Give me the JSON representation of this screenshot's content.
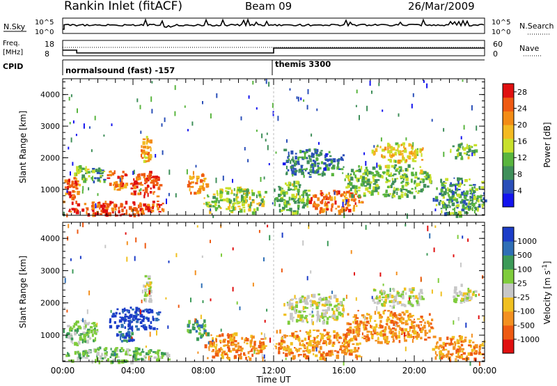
{
  "header": {
    "title": "Rankin Inlet (fitACF)",
    "beam": "Beam 09",
    "date": "26/Mar/2009"
  },
  "params": {
    "nsky_label": "N.Sky",
    "nsky_ticks": [
      "10^5",
      "10^0"
    ],
    "nsearch_label": "N.Search",
    "nsearch_ticks": [
      "10^5",
      "10^0"
    ],
    "freq_label": "Freq.",
    "freq_unit": "[MHz]",
    "freq_ticks": [
      "18",
      "8"
    ],
    "nave_label": "Nave",
    "nave_ticks": [
      "60",
      "0"
    ],
    "cpid_label": "CPID",
    "cpid_segments": [
      {
        "start_hr": 0,
        "label": "normalsound (fast) -157"
      },
      {
        "start_hr": 12,
        "label": "themis 3300"
      }
    ]
  },
  "colors": {
    "power": [
      "#1414ee",
      "#2a4fb8",
      "#3f8f5a",
      "#59b53e",
      "#c8e02c",
      "#f3ba22",
      "#f38c16",
      "#ef5a12",
      "#e01010"
    ],
    "velocity": [
      "#1c3dc8",
      "#2f6fb6",
      "#3c9a58",
      "#7fcc3c",
      "#c7c7c7",
      "#f0c020",
      "#f39020",
      "#ee5a12",
      "#e01010"
    ]
  },
  "chart_data": [
    {
      "type": "heatmap",
      "title": "Power",
      "ylabel": "Slant Range [km]",
      "xlabel": "Time UT",
      "xlim": [
        0,
        24
      ],
      "ylim": [
        180,
        4500
      ],
      "x_ticks": [
        "00:00",
        "04:00",
        "08:00",
        "12:00",
        "16:00",
        "20:00",
        "00:00"
      ],
      "y_ticks": [
        1000,
        2000,
        3000,
        4000
      ],
      "colorbar": {
        "label": "Power [dB]",
        "range": [
          0,
          30
        ],
        "ticks": [
          4,
          8,
          12,
          16,
          20,
          24,
          28
        ]
      },
      "clusters": [
        {
          "t0": 0.0,
          "t1": 1.0,
          "r0": 750,
          "r1": 1400,
          "value": 24
        },
        {
          "t0": 0.0,
          "t1": 6.0,
          "r0": 200,
          "r1": 650,
          "value": 26
        },
        {
          "t0": 0.6,
          "t1": 1.5,
          "r0": 1300,
          "r1": 1800,
          "value": 14
        },
        {
          "t0": 1.5,
          "t1": 2.4,
          "r0": 1200,
          "r1": 1700,
          "value": 10
        },
        {
          "t0": 2.5,
          "t1": 3.6,
          "r0": 1000,
          "r1": 1700,
          "value": 24
        },
        {
          "t0": 3.8,
          "t1": 5.6,
          "r0": 800,
          "r1": 1600,
          "value": 26
        },
        {
          "t0": 4.4,
          "t1": 5.0,
          "r0": 1900,
          "r1": 2700,
          "value": 20
        },
        {
          "t0": 7.0,
          "t1": 8.2,
          "r0": 900,
          "r1": 1600,
          "value": 22
        },
        {
          "t0": 8.0,
          "t1": 11.5,
          "r0": 300,
          "r1": 1100,
          "value": 14
        },
        {
          "t0": 12.0,
          "t1": 14.0,
          "r0": 300,
          "r1": 1300,
          "value": 12
        },
        {
          "t0": 14.0,
          "t1": 17.0,
          "r0": 300,
          "r1": 1000,
          "value": 24
        },
        {
          "t0": 17.5,
          "t1": 20.5,
          "r0": 1900,
          "r1": 2500,
          "value": 18
        },
        {
          "t0": 16.0,
          "t1": 21.0,
          "r0": 800,
          "r1": 1800,
          "value": 12
        },
        {
          "t0": 12.5,
          "t1": 16.0,
          "r0": 1400,
          "r1": 2300,
          "value": 8
        },
        {
          "t0": 21.0,
          "t1": 24.0,
          "r0": 200,
          "r1": 1400,
          "value": 10
        },
        {
          "t0": 22.0,
          "t1": 23.5,
          "r0": 2000,
          "r1": 2500,
          "value": 12
        }
      ]
    },
    {
      "type": "heatmap",
      "title": "Velocity",
      "ylabel": "Slant Range [km]",
      "xlabel": "Time UT",
      "xlim": [
        0,
        24
      ],
      "ylim": [
        180,
        4500
      ],
      "x_ticks": [
        "00:00",
        "04:00",
        "08:00",
        "12:00",
        "16:00",
        "20:00",
        "00:00"
      ],
      "y_ticks": [
        1000,
        2000,
        3000,
        4000
      ],
      "colorbar": {
        "label": "Velocity [m s",
        "label_exponent": "-1",
        "label_close": "]",
        "ticks": [
          "1000",
          "500",
          "100",
          "25",
          "-25",
          "-100",
          "-500",
          "-1000"
        ]
      },
      "clusters": [
        {
          "t0": 0.0,
          "t1": 2.0,
          "r0": 700,
          "r1": 1500,
          "value": 3
        },
        {
          "t0": 0.0,
          "t1": 6.0,
          "r0": 200,
          "r1": 650,
          "value": 3
        },
        {
          "t0": 2.5,
          "t1": 5.5,
          "r0": 1200,
          "r1": 1900,
          "value": 0
        },
        {
          "t0": 3.0,
          "t1": 4.0,
          "r0": 800,
          "r1": 1200,
          "value": 1
        },
        {
          "t0": 4.5,
          "t1": 5.0,
          "r0": 2000,
          "r1": 2900,
          "value": 4
        },
        {
          "t0": 7.0,
          "t1": 8.2,
          "r0": 900,
          "r1": 1600,
          "value": 2
        },
        {
          "t0": 8.0,
          "t1": 11.5,
          "r0": 300,
          "r1": 1100,
          "value": 6
        },
        {
          "t0": 12.0,
          "t1": 17.0,
          "r0": 300,
          "r1": 1200,
          "value": 6
        },
        {
          "t0": 17.5,
          "t1": 20.5,
          "r0": 1900,
          "r1": 2500,
          "value": 4
        },
        {
          "t0": 16.0,
          "t1": 21.0,
          "r0": 800,
          "r1": 1800,
          "value": 6
        },
        {
          "t0": 12.5,
          "t1": 16.0,
          "r0": 1400,
          "r1": 2300,
          "value": 4
        },
        {
          "t0": 21.0,
          "t1": 24.0,
          "r0": 200,
          "r1": 1000,
          "value": 6
        },
        {
          "t0": 22.0,
          "t1": 23.5,
          "r0": 2000,
          "r1": 2600,
          "value": 4
        }
      ]
    }
  ]
}
